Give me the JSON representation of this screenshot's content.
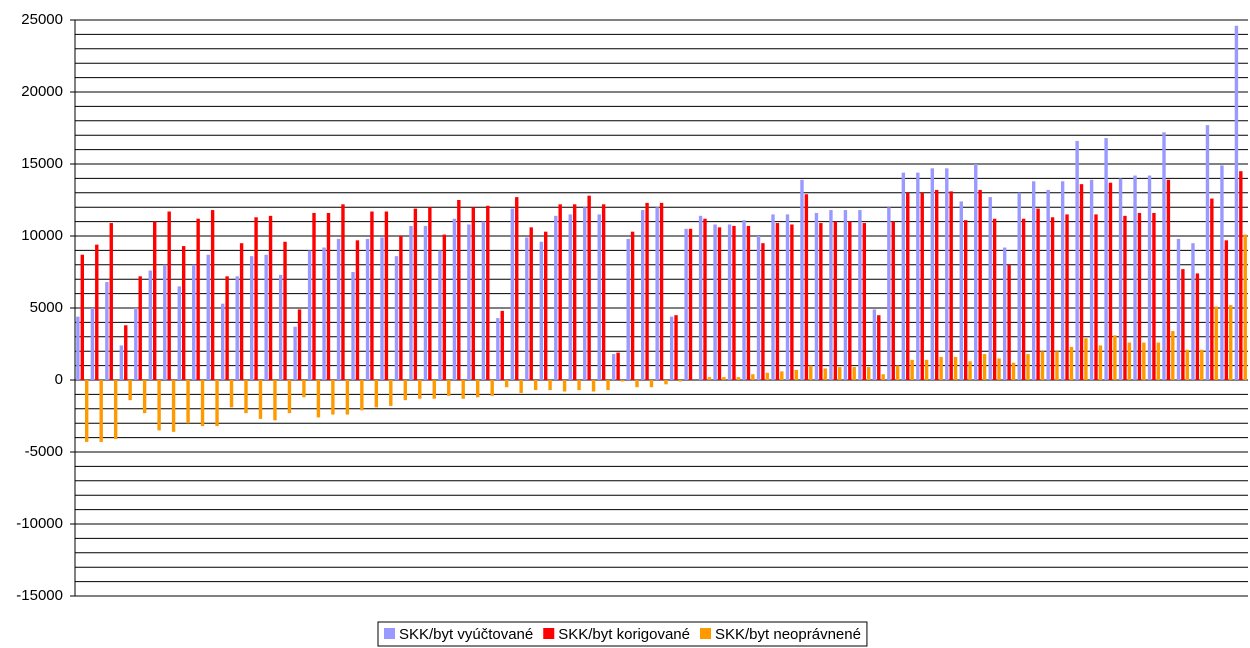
{
  "chart_data": {
    "type": "bar",
    "categories": [
      null,
      null,
      null,
      null,
      null,
      null,
      null,
      null,
      null,
      null,
      null,
      null,
      null,
      null,
      null,
      null,
      null,
      null,
      null,
      null,
      null,
      null,
      null,
      null,
      null,
      null,
      null,
      null,
      null,
      null,
      null,
      null,
      null,
      null,
      null,
      null,
      null,
      null,
      null,
      null,
      null,
      null,
      null,
      null,
      null,
      null,
      null,
      null,
      null,
      null,
      null,
      null,
      null,
      null,
      null,
      null,
      null,
      null,
      null,
      null,
      null,
      null,
      null,
      null,
      null,
      null,
      null,
      null,
      null,
      null,
      null,
      null,
      null,
      null,
      null,
      null,
      null,
      null,
      null,
      null,
      null
    ],
    "series": [
      {
        "name": "SKK/byt vyúčtované",
        "color": "#9999ff",
        "values": [
          4400,
          5000,
          6800,
          2400,
          5000,
          7600,
          8000,
          6500,
          8000,
          8700,
          5300,
          7200,
          8600,
          8700,
          7300,
          3700,
          9000,
          9200,
          9800,
          7500,
          9800,
          9900,
          8600,
          10700,
          10700,
          9000,
          11200,
          10800,
          11000,
          4300,
          11900,
          9900,
          9600,
          11400,
          11500,
          12000,
          11500,
          1800,
          9800,
          11800,
          12000,
          4400,
          10500,
          11400,
          10800,
          10800,
          11100,
          10000,
          11500,
          11500,
          13900,
          11600,
          11800,
          11800,
          11800,
          4900,
          12000,
          14400,
          14400,
          14700,
          14700,
          12400,
          15000,
          12700,
          9200,
          13000,
          13800,
          13200,
          13800,
          16600,
          13900,
          16800,
          14000,
          14200,
          14200,
          17200,
          9800,
          9500,
          17700,
          14900,
          24600
        ]
      },
      {
        "name": "SKK/byt korigované",
        "color": "#ff0000",
        "values": [
          8700,
          9400,
          10900,
          3800,
          7200,
          11000,
          11700,
          9300,
          11200,
          11800,
          7200,
          9500,
          11300,
          11400,
          9600,
          4900,
          11600,
          11600,
          12200,
          9700,
          11700,
          11700,
          10000,
          11900,
          12000,
          10100,
          12500,
          12000,
          12100,
          4800,
          12700,
          10600,
          10300,
          12200,
          12200,
          12800,
          12200,
          1900,
          10300,
          12300,
          12300,
          4500,
          10500,
          11200,
          10600,
          10700,
          10700,
          9500,
          10900,
          10800,
          12900,
          10900,
          11000,
          11000,
          10900,
          4500,
          11000,
          13000,
          13000,
          13200,
          13100,
          11100,
          13200,
          11200,
          8000,
          11200,
          11900,
          11300,
          11500,
          13600,
          11500,
          13700,
          11400,
          11600,
          11600,
          13900,
          7700,
          7400,
          12600,
          9700,
          14500
        ]
      },
      {
        "name": "SKK/byt neoprávnené",
        "color": "#ff9900",
        "values": [
          -4300,
          -4300,
          -4100,
          -1400,
          -2300,
          -3500,
          -3600,
          -3000,
          -3200,
          -3200,
          -1900,
          -2300,
          -2700,
          -2800,
          -2300,
          -1200,
          -2600,
          -2400,
          -2400,
          -2100,
          -1900,
          -1800,
          -1400,
          -1300,
          -1300,
          -1100,
          -1300,
          -1200,
          -1100,
          -500,
          -900,
          -700,
          -700,
          -800,
          -700,
          -800,
          -700,
          -100,
          -500,
          -500,
          -300,
          -100,
          0,
          200,
          200,
          200,
          400,
          500,
          600,
          700,
          1000,
          800,
          900,
          900,
          900,
          400,
          1000,
          1400,
          1400,
          1600,
          1600,
          1300,
          1800,
          1500,
          1200,
          1800,
          2000,
          2000,
          2300,
          2900,
          2400,
          3100,
          2600,
          2600,
          2600,
          3400,
          2100,
          2100,
          5100,
          5200,
          10100
        ]
      }
    ],
    "ylim": [
      -15000,
      25000
    ],
    "yticks": [
      -15000,
      -10000,
      -5000,
      0,
      5000,
      10000,
      15000,
      20000,
      25000
    ],
    "grid_lines": [
      -15000,
      -14000,
      -13000,
      -12000,
      -11000,
      -10000,
      -9000,
      -8000,
      -7000,
      -6000,
      -5000,
      -4000,
      -3000,
      -2000,
      -1000,
      0,
      1000,
      2000,
      3000,
      4000,
      5000,
      6000,
      7000,
      8000,
      9000,
      10000,
      11000,
      12000,
      13000,
      14000,
      15000,
      16000,
      17000,
      18000,
      19000,
      20000,
      21000,
      22000,
      23000,
      24000,
      25000
    ],
    "legend": "bottom"
  }
}
